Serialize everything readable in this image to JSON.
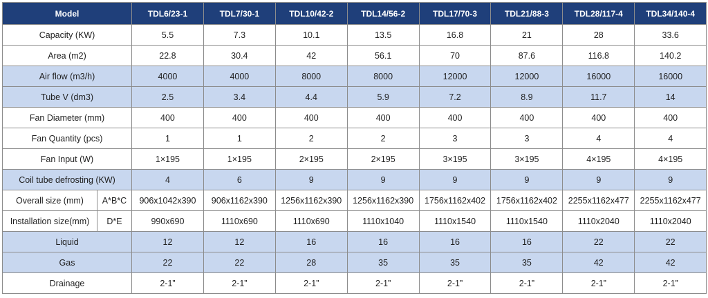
{
  "header": {
    "label": "Model",
    "models": [
      "TDL6/23-1",
      "TDL7/30-1",
      "TDL10/42-2",
      "TDL14/56-2",
      "TDL17/70-3",
      "TDL21/88-3",
      "TDL28/117-4",
      "TDL34/140-4"
    ]
  },
  "rows": [
    {
      "label": "Capacity (KW)",
      "shaded": false,
      "values": [
        "5.5",
        "7.3",
        "10.1",
        "13.5",
        "16.8",
        "21",
        "28",
        "33.6"
      ]
    },
    {
      "label": "Area (m2)",
      "shaded": false,
      "values": [
        "22.8",
        "30.4",
        "42",
        "56.1",
        "70",
        "87.6",
        "116.8",
        "140.2"
      ]
    },
    {
      "label": "Air flow (m3/h)",
      "shaded": true,
      "values": [
        "4000",
        "4000",
        "8000",
        "8000",
        "12000",
        "12000",
        "16000",
        "16000"
      ]
    },
    {
      "label": "Tube V (dm3)",
      "shaded": true,
      "values": [
        "2.5",
        "3.4",
        "4.4",
        "5.9",
        "7.2",
        "8.9",
        "11.7",
        "14"
      ]
    },
    {
      "label": "Fan Diameter (mm)",
      "shaded": false,
      "values": [
        "400",
        "400",
        "400",
        "400",
        "400",
        "400",
        "400",
        "400"
      ]
    },
    {
      "label": "Fan Quantity (pcs)",
      "shaded": false,
      "values": [
        "1",
        "1",
        "2",
        "2",
        "3",
        "3",
        "4",
        "4"
      ]
    },
    {
      "label": "Fan Input (W)",
      "shaded": false,
      "values": [
        "1×195",
        "1×195",
        "2×195",
        "2×195",
        "3×195",
        "3×195",
        "4×195",
        "4×195"
      ]
    },
    {
      "label": "Coil tube defrosting (KW)",
      "shaded": true,
      "values": [
        "4",
        "6",
        "9",
        "9",
        "9",
        "9",
        "9",
        "9"
      ]
    },
    {
      "label": "Overall size (mm)",
      "sub": "A*B*C",
      "shaded": false,
      "values": [
        "906x1042x390",
        "906x1162x390",
        "1256x1162x390",
        "1256x1162x390",
        "1756x1162x402",
        "1756x1162x402",
        "2255x1162x477",
        "2255x1162x477"
      ]
    },
    {
      "label": "Installation size(mm)",
      "sub": "D*E",
      "shaded": false,
      "values": [
        "990x690",
        "1110x690",
        "1110x690",
        "1110x1040",
        "1110x1540",
        "1110x1540",
        "1110x2040",
        "1110x2040"
      ]
    },
    {
      "label": "Liquid",
      "shaded": true,
      "values": [
        "12",
        "12",
        "16",
        "16",
        "16",
        "16",
        "22",
        "22"
      ]
    },
    {
      "label": "Gas",
      "shaded": true,
      "values": [
        "22",
        "22",
        "28",
        "35",
        "35",
        "35",
        "42",
        "42"
      ]
    },
    {
      "label": "Drainage",
      "shaded": false,
      "values": [
        "2-1”",
        "2-1”",
        "2-1”",
        "2-1”",
        "2-1”",
        "2-1”",
        "2-1”",
        "2-1”"
      ]
    }
  ]
}
